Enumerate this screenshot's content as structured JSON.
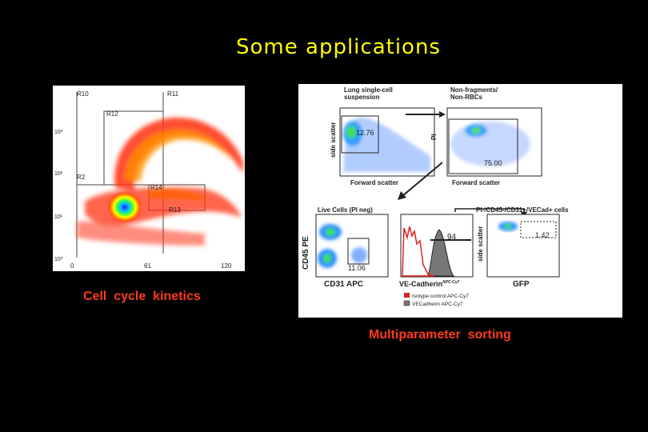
{
  "slide": {
    "title": "Some  applications",
    "caption_left": "Cell  cycle  kinetics",
    "caption_right": "Multiparameter  sorting"
  },
  "left_plot": {
    "gates": [
      "R10",
      "R11",
      "R12",
      "R2",
      "R14",
      "R13"
    ],
    "y_ticks": [
      "10³",
      "10²",
      "10¹",
      "10⁰"
    ],
    "x_ticks": [
      "0",
      "61",
      "120"
    ]
  },
  "right_figure": {
    "top_left": {
      "title": "Lung single-cell\nsuspension",
      "value": "12.76",
      "xlabel": "Forward scatter",
      "ylabel": "side scatter"
    },
    "top_right": {
      "title": "Non-fragments/\nNon-RBCs",
      "value": "75.00",
      "xlabel": "Forward scatter",
      "ylabel": "PI"
    },
    "bottom_left": {
      "title": "Live Cells (PI neg)",
      "value": "11.06",
      "xlabel": "CD31 APC",
      "ylabel": "CD45 PE"
    },
    "bottom_mid": {
      "value": "94",
      "xlabel": "VE-Cadherin",
      "xlabel_sup": "APC-Cy7"
    },
    "bottom_right": {
      "title": "PI-/CD45-/CD31+/VECad+ cells",
      "value": "1.42",
      "xlabel": "GFP",
      "ylabel": "side scatter"
    },
    "legend": [
      {
        "label": "Isotype control APC-Cy7",
        "color": "#e02020"
      },
      {
        "label": "VECadherin APC-Cy7",
        "color": "#777777"
      }
    ]
  }
}
